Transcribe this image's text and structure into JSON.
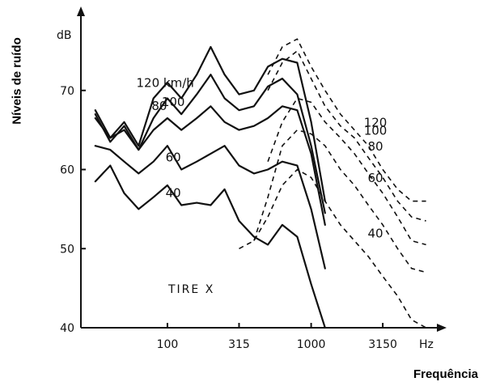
{
  "chart_data": {
    "type": "line",
    "xlabel": "Frequência",
    "ylabel": "Níveis de ruído",
    "yunit": "dB",
    "xunit": "Hz",
    "annotation": "TIRE X",
    "speed_unit": "km/h",
    "ylim": [
      40,
      80
    ],
    "yticks": [
      40,
      50,
      60,
      70
    ],
    "xticks": [
      "100",
      "315",
      "1000",
      "3150"
    ],
    "xtick_values": [
      100,
      315,
      1000,
      3150
    ],
    "xlim": [
      25,
      8000
    ],
    "grid": false,
    "series": [
      {
        "name": "120",
        "style": "solid",
        "x": [
          31.5,
          40,
          50,
          63,
          80,
          100,
          125,
          160,
          200,
          250,
          315,
          400,
          500,
          630,
          800,
          1000,
          1250
        ],
        "y": [
          67.5,
          64,
          66,
          63,
          69,
          71,
          69,
          72,
          75.5,
          72,
          69.5,
          70,
          73,
          74,
          73.5,
          66,
          56
        ]
      },
      {
        "name": "100",
        "style": "solid",
        "x": [
          31.5,
          40,
          50,
          63,
          80,
          100,
          125,
          160,
          200,
          250,
          315,
          400,
          500,
          630,
          800,
          1000,
          1250
        ],
        "y": [
          67,
          63.5,
          65.5,
          62.5,
          66.5,
          69,
          67,
          69.5,
          72,
          69,
          67.5,
          68,
          70.5,
          71.5,
          69.5,
          63,
          54.5
        ]
      },
      {
        "name": "80",
        "style": "solid",
        "x": [
          31.5,
          40,
          50,
          63,
          80,
          100,
          125,
          160,
          200,
          250,
          315,
          400,
          500,
          630,
          800,
          1000,
          1250
        ],
        "y": [
          66.5,
          64,
          65,
          62.5,
          65,
          66.5,
          65,
          66.5,
          68,
          66,
          65,
          65.5,
          66.5,
          68,
          67.5,
          62,
          53
        ]
      },
      {
        "name": "60",
        "style": "solid",
        "x": [
          31.5,
          40,
          50,
          63,
          80,
          100,
          125,
          160,
          200,
          250,
          315,
          400,
          500,
          630,
          800,
          1000,
          1250
        ],
        "y": [
          63,
          62.5,
          61,
          59.5,
          61,
          63,
          60,
          61,
          62,
          63,
          60.5,
          59.5,
          60,
          61,
          60.5,
          55,
          47.5
        ]
      },
      {
        "name": "40",
        "style": "solid",
        "x": [
          31.5,
          40,
          50,
          63,
          80,
          100,
          125,
          160,
          200,
          250,
          315,
          400,
          500,
          630,
          800,
          1000,
          1250
        ],
        "y": [
          58.5,
          60.5,
          57,
          55,
          56.5,
          58,
          55.5,
          55.8,
          55.5,
          57.5,
          53.5,
          51.5,
          50.5,
          53,
          51.5,
          45.5,
          40
        ]
      },
      {
        "name": "120",
        "style": "dashed",
        "x": [
          500,
          630,
          800,
          1000,
          1250,
          1600,
          2000,
          2500,
          3150,
          4000,
          5000,
          6300
        ],
        "y": [
          72,
          75.5,
          76.5,
          73,
          70,
          67,
          65,
          63,
          60,
          57.5,
          56,
          56
        ]
      },
      {
        "name": "100",
        "style": "dashed",
        "x": [
          500,
          630,
          800,
          1000,
          1250,
          1600,
          2000,
          2500,
          3150,
          4000,
          5000,
          6300
        ],
        "y": [
          70,
          73.5,
          75,
          71.5,
          68,
          65.5,
          64,
          61.5,
          59,
          56,
          54,
          53.5
        ]
      },
      {
        "name": "80",
        "style": "dashed",
        "x": [
          500,
          630,
          800,
          1000,
          1250,
          1600,
          2000,
          2500,
          3150,
          4000,
          5000,
          6300
        ],
        "y": [
          61,
          66,
          69,
          68.5,
          66,
          64,
          62,
          59.5,
          57,
          54,
          51,
          50.5
        ]
      },
      {
        "name": "60",
        "style": "dashed",
        "x": [
          400,
          500,
          630,
          800,
          1000,
          1250,
          1600,
          2000,
          2500,
          3150,
          4000,
          5000,
          6300
        ],
        "y": [
          51,
          56.5,
          63,
          65,
          64.5,
          63,
          60,
          58,
          55.5,
          53,
          50,
          47.5,
          47
        ]
      },
      {
        "name": "40",
        "style": "dashed",
        "x": [
          315,
          400,
          500,
          630,
          800,
          1000,
          1250,
          1600,
          2000,
          2500,
          3150,
          4000,
          5000,
          6300
        ],
        "y": [
          50,
          51,
          54,
          58,
          60,
          59,
          56,
          53,
          51,
          49,
          46.5,
          44,
          41,
          40
        ]
      }
    ],
    "labels": [
      {
        "text": "120 km/h",
        "series": 0
      },
      {
        "text": "100",
        "series": 1
      },
      {
        "text": "80",
        "series": 2
      },
      {
        "text": "60",
        "series": 3
      },
      {
        "text": "40",
        "series": 4
      },
      {
        "text": "120",
        "series": 5
      },
      {
        "text": "100",
        "series": 6
      },
      {
        "text": "80",
        "series": 7
      },
      {
        "text": "60",
        "series": 8
      },
      {
        "text": "40",
        "series": 9
      }
    ]
  }
}
